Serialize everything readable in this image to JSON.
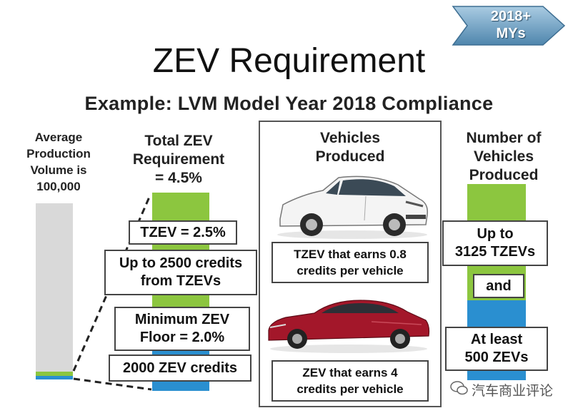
{
  "title": "ZEV Requirement",
  "subtitle": "Example: LVM Model Year 2018 Compliance",
  "badge": {
    "line1": "2018+",
    "line2": "MYs"
  },
  "left_column": {
    "label_lines": [
      "Average",
      "Production",
      "Volume is",
      "100,000"
    ]
  },
  "middle_column": {
    "header_lines": [
      "Total ZEV",
      "Requirement",
      "= 4.5%"
    ],
    "tzev_box": "TZEV = 2.5%",
    "credits_box_lines": [
      "Up to 2500 credits",
      "from TZEVs"
    ],
    "floor_box_lines": [
      "Minimum ZEV",
      "Floor = 2.0%"
    ],
    "zev_credits_box": "2000 ZEV credits"
  },
  "center_panel": {
    "header_lines": [
      "Vehicles",
      "Produced"
    ],
    "tzev_caption_lines": [
      "TZEV that earns 0.8",
      "credits per vehicle"
    ],
    "zev_caption_lines": [
      "ZEV that earns 4",
      "credits per vehicle"
    ],
    "car_icons": [
      "white-hatchback-icon",
      "red-sedan-icon"
    ]
  },
  "right_column": {
    "header_lines": [
      "Number of",
      "Vehicles",
      "Produced"
    ],
    "tzev_box_lines": [
      "Up to",
      "3125 TZEVs"
    ],
    "and_box": "and",
    "zev_box_lines": [
      "At least",
      "500 ZEVs"
    ]
  },
  "watermark": "汽车商业评论",
  "colors": {
    "green": "#8cc63f",
    "blue": "#2a8fd0",
    "gray_bar": "#d9d9d9",
    "badge_blue": "#6fa4c8"
  }
}
